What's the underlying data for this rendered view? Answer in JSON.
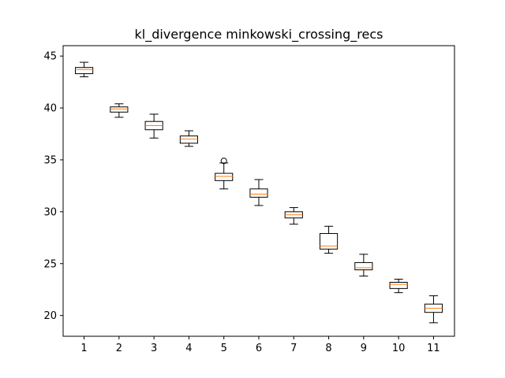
{
  "chart_data": {
    "type": "boxplot",
    "title": "kl_divergence minkowski_crossing_recs",
    "xlabel": "",
    "ylabel": "",
    "ylim": [
      18.0,
      46.0
    ],
    "yticks": [
      20,
      25,
      30,
      35,
      40,
      45
    ],
    "categories": [
      "1",
      "2",
      "3",
      "4",
      "5",
      "6",
      "7",
      "8",
      "9",
      "10",
      "11"
    ],
    "grid": false,
    "colors": {
      "box": "#000000",
      "median": "#ff7f0e",
      "background": "#ffffff"
    },
    "boxes": [
      {
        "label": "1",
        "whisker_low": 43.0,
        "q1": 43.3,
        "median": 43.7,
        "q3": 43.9,
        "whisker_high": 44.4,
        "outliers": []
      },
      {
        "label": "2",
        "whisker_low": 39.1,
        "q1": 39.6,
        "median": 39.9,
        "q3": 40.1,
        "whisker_high": 40.4,
        "outliers": []
      },
      {
        "label": "3",
        "whisker_low": 37.1,
        "q1": 37.9,
        "median": 38.3,
        "q3": 38.7,
        "whisker_high": 39.4,
        "outliers": []
      },
      {
        "label": "4",
        "whisker_low": 36.3,
        "q1": 36.6,
        "median": 37.0,
        "q3": 37.3,
        "whisker_high": 37.8,
        "outliers": []
      },
      {
        "label": "5",
        "whisker_low": 32.2,
        "q1": 33.0,
        "median": 33.4,
        "q3": 33.7,
        "whisker_high": 34.7,
        "outliers": [
          34.9
        ]
      },
      {
        "label": "6",
        "whisker_low": 30.6,
        "q1": 31.4,
        "median": 31.7,
        "q3": 32.2,
        "whisker_high": 33.1,
        "outliers": []
      },
      {
        "label": "7",
        "whisker_low": 28.8,
        "q1": 29.4,
        "median": 29.7,
        "q3": 30.0,
        "whisker_high": 30.4,
        "outliers": []
      },
      {
        "label": "8",
        "whisker_low": 26.0,
        "q1": 26.4,
        "median": 26.7,
        "q3": 27.9,
        "whisker_high": 28.6,
        "outliers": []
      },
      {
        "label": "9",
        "whisker_low": 23.8,
        "q1": 24.4,
        "median": 24.6,
        "q3": 25.1,
        "whisker_high": 25.9,
        "outliers": []
      },
      {
        "label": "10",
        "whisker_low": 22.2,
        "q1": 22.6,
        "median": 23.0,
        "q3": 23.2,
        "whisker_high": 23.5,
        "outliers": []
      },
      {
        "label": "11",
        "whisker_low": 19.3,
        "q1": 20.3,
        "median": 20.7,
        "q3": 21.1,
        "whisker_high": 21.9,
        "outliers": []
      }
    ]
  }
}
